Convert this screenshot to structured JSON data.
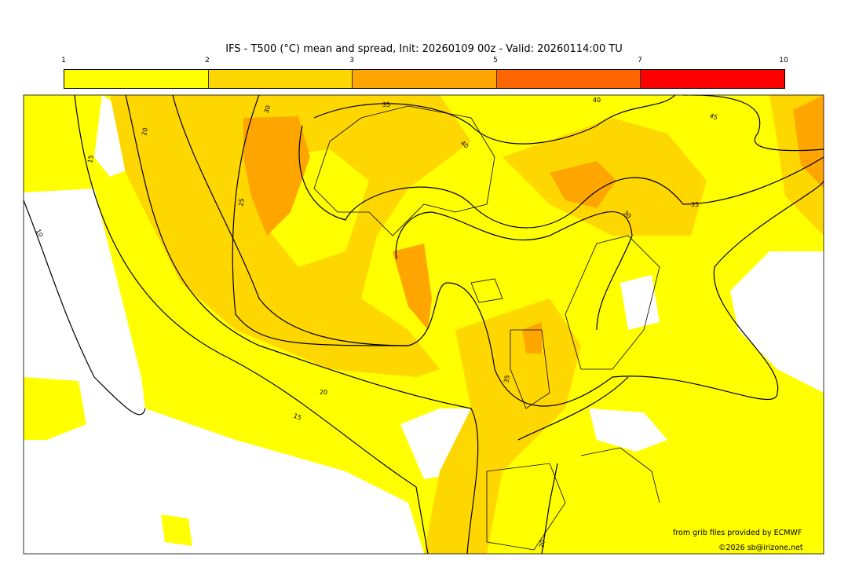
{
  "title": "IFS - T500 (°C) mean and spread, Init: 20260109 00z - Valid: 20260114:00 TU",
  "colorbar": {
    "ticks": [
      "1",
      "2",
      "3",
      "5",
      "7",
      "10"
    ],
    "colors": [
      "#ffff00",
      "#ffd700",
      "#ffa500",
      "#ff6600",
      "#ff0000"
    ]
  },
  "contour_labels": [
    "20",
    "15",
    "10",
    "30",
    "35",
    "40",
    "45",
    "40",
    "25",
    "35",
    "30",
    "35",
    "20",
    "15",
    "20"
  ],
  "credits": {
    "source": "from grib files provided by ECMWF",
    "copyright": "©2026 sb@irizone.net"
  }
}
